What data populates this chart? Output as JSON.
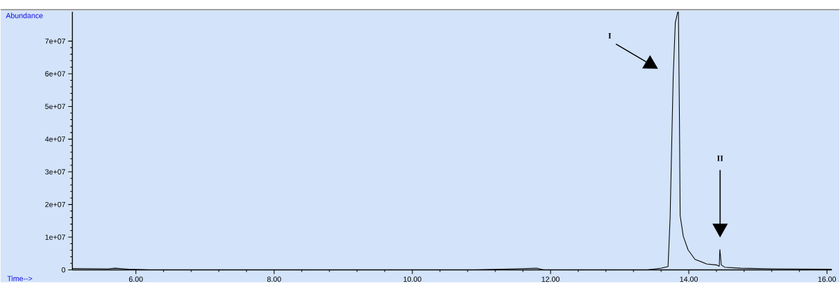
{
  "chart_data": {
    "type": "line",
    "xlabel": "Time-->",
    "ylabel": "Abundance",
    "x": [
      5.08,
      5.6,
      5.7,
      5.9,
      6.2,
      10.9,
      11.8,
      11.9,
      13.4,
      13.6,
      13.7,
      13.73,
      13.755,
      13.775,
      13.805,
      13.84,
      13.85,
      13.865,
      13.875,
      13.92,
      13.99,
      14.09,
      14.26,
      14.4,
      14.44,
      14.45,
      14.47,
      14.52,
      14.75,
      15.22,
      16.07
    ],
    "series": [
      {
        "color": "#000000",
        "values": [
          400000,
          300000,
          500000,
          200000,
          0,
          0,
          500000,
          0,
          0,
          500000,
          1000000,
          16000000,
          40500000,
          59500000,
          75700000,
          78900000,
          78900000,
          46000000,
          16600000,
          10300000,
          6100000,
          3200000,
          1800000,
          1500000,
          1100000,
          6200000,
          1500000,
          800000,
          500000,
          300000,
          200000
        ]
      }
    ],
    "xlim": [
      5.08,
      16.07
    ],
    "ylim": [
      0,
      79000000
    ],
    "xticks": [
      {
        "value": 6,
        "label": "6.00"
      },
      {
        "value": 8,
        "label": "8.00"
      },
      {
        "value": 10,
        "label": "10.00"
      },
      {
        "value": 12,
        "label": "12.00"
      },
      {
        "value": 14,
        "label": "14.00"
      },
      {
        "value": 16,
        "label": "16.00"
      }
    ],
    "yticks": [
      0,
      {
        "value": 10000000,
        "label": "1e+07"
      },
      {
        "value": 20000000,
        "label": "2e+07"
      },
      {
        "value": 30000000,
        "label": "3e+07"
      },
      {
        "value": 40000000,
        "label": "4e+07"
      },
      {
        "value": 50000000,
        "label": "5e+07"
      },
      {
        "value": 60000000,
        "label": "6e+07"
      },
      {
        "value": 70000000,
        "label": "7e+07"
      }
    ],
    "annotations": [
      "I",
      "II"
    ],
    "grid": false,
    "marker": "none",
    "line_style": "solid"
  }
}
